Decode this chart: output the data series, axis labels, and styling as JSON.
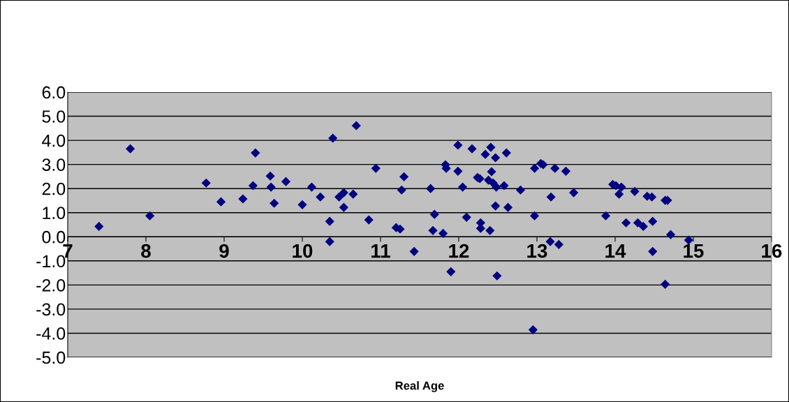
{
  "chart_data": {
    "type": "scatter",
    "xlabel": "Real Age",
    "x": [
      7.4,
      7.8,
      8.05,
      8.77,
      8.96,
      9.24,
      9.37,
      9.4,
      9.59,
      9.6,
      9.64,
      9.79,
      10.0,
      10.12,
      10.23,
      10.35,
      10.35,
      10.39,
      10.47,
      10.53,
      10.53,
      10.65,
      10.69,
      10.85,
      10.94,
      11.2,
      11.25,
      11.27,
      11.3,
      11.43,
      11.64,
      11.69,
      11.67,
      11.8,
      11.83,
      11.84,
      11.9,
      11.99,
      11.99,
      12.05,
      12.1,
      12.17,
      12.24,
      12.27,
      12.28,
      12.28,
      12.34,
      12.4,
      12.41,
      12.42,
      12.38,
      12.44,
      12.47,
      12.47,
      12.49,
      12.48,
      12.58,
      12.61,
      12.63,
      12.79,
      12.95,
      12.97,
      12.97,
      13.05,
      13.08,
      13.17,
      13.18,
      13.23,
      13.28,
      13.37,
      13.47,
      13.88,
      13.97,
      14.01,
      14.08,
      14.05,
      14.14,
      14.25,
      14.29,
      14.36,
      14.41,
      14.47,
      14.48,
      14.48,
      14.64,
      14.67,
      14.64,
      14.71,
      14.94
    ],
    "series": [
      {
        "color": "#000080",
        "values": [
          0.43,
          3.65,
          0.87,
          2.23,
          1.45,
          1.57,
          2.12,
          3.48,
          2.52,
          2.06,
          1.39,
          2.29,
          1.33,
          2.06,
          1.65,
          0.64,
          -0.2,
          4.09,
          1.65,
          1.83,
          1.22,
          1.77,
          4.61,
          0.7,
          2.84,
          0.38,
          0.32,
          1.94,
          2.49,
          -0.61,
          2.0,
          0.93,
          0.26,
          0.14,
          2.99,
          2.84,
          -1.45,
          3.8,
          2.72,
          2.06,
          0.81,
          3.65,
          2.46,
          2.41,
          0.58,
          0.35,
          3.42,
          0.26,
          3.71,
          2.7,
          2.35,
          2.23,
          3.28,
          1.28,
          -1.62,
          2.06,
          2.12,
          3.48,
          1.22,
          1.94,
          -3.86,
          0.87,
          2.84,
          3.04,
          2.99,
          -0.2,
          1.65,
          2.84,
          -0.32,
          2.72,
          1.83,
          0.87,
          2.17,
          2.12,
          2.06,
          1.77,
          0.58,
          1.88,
          0.58,
          0.43,
          1.68,
          1.65,
          -0.61,
          0.64,
          1.51,
          1.51,
          -1.97,
          0.09,
          -0.14
        ]
      }
    ],
    "marker": "diamond",
    "xlim": [
      7,
      16
    ],
    "xticks": [
      7,
      8,
      9,
      10,
      11,
      12,
      13,
      14,
      15,
      16
    ],
    "ylim": [
      -5,
      6
    ],
    "yticks": [
      {
        "value": -5,
        "label": "-5.0"
      },
      {
        "value": -4,
        "label": "-4.0"
      },
      {
        "value": -3,
        "label": "-3.0"
      },
      {
        "value": -2,
        "label": "-2.0"
      },
      {
        "value": -1,
        "label": "-1.0"
      },
      {
        "value": 0,
        "label": "0.0"
      },
      {
        "value": 1,
        "label": "1.0"
      },
      {
        "value": 2,
        "label": "2.0"
      },
      {
        "value": 3,
        "label": "3.0"
      },
      {
        "value": 4,
        "label": "4.0"
      },
      {
        "value": 5,
        "label": "5.0"
      },
      {
        "value": 6,
        "label": "6.0"
      }
    ],
    "grid": "y"
  }
}
